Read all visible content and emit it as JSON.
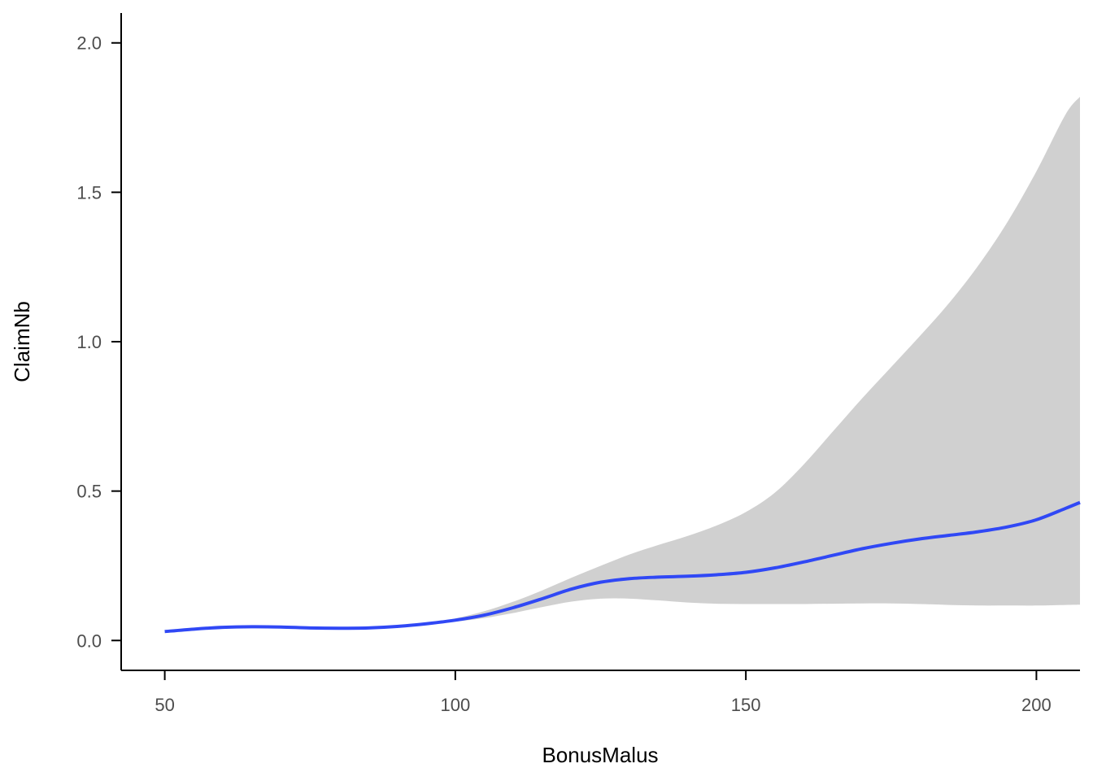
{
  "chart_data": {
    "type": "line",
    "xlabel": "BonusMalus",
    "ylabel": "ClaimNb",
    "xlim": [
      42.5,
      207.5
    ],
    "ylim": [
      -0.1,
      2.1
    ],
    "x_ticks": [
      50,
      100,
      150,
      200
    ],
    "y_ticks": [
      0.0,
      0.5,
      1.0,
      1.5,
      2.0
    ],
    "x_tick_labels": [
      "50",
      "100",
      "150",
      "200"
    ],
    "y_tick_labels": [
      "0.0",
      "0.5",
      "1.0",
      "1.5",
      "2.0"
    ],
    "grid": false,
    "series": [
      {
        "line_color": "#3048f5",
        "band_color": "#d0d0d0",
        "x": [
          50,
          55,
          60,
          65,
          70,
          75,
          80,
          85,
          90,
          95,
          100,
          105,
          110,
          115,
          120,
          125,
          130,
          135,
          140,
          145,
          150,
          155,
          160,
          165,
          170,
          175,
          180,
          185,
          190,
          195,
          200,
          205,
          207.5
        ],
        "y": [
          0.03,
          0.038,
          0.044,
          0.046,
          0.045,
          0.042,
          0.041,
          0.042,
          0.047,
          0.056,
          0.068,
          0.085,
          0.11,
          0.14,
          0.172,
          0.195,
          0.207,
          0.212,
          0.215,
          0.22,
          0.228,
          0.243,
          0.263,
          0.285,
          0.307,
          0.325,
          0.34,
          0.352,
          0.364,
          0.38,
          0.404,
          0.442,
          0.462
        ],
        "lower": [
          0.03,
          0.038,
          0.044,
          0.046,
          0.045,
          0.042,
          0.041,
          0.042,
          0.046,
          0.054,
          0.063,
          0.075,
          0.092,
          0.112,
          0.13,
          0.14,
          0.14,
          0.134,
          0.127,
          0.123,
          0.122,
          0.122,
          0.122,
          0.123,
          0.124,
          0.124,
          0.122,
          0.119,
          0.117,
          0.117,
          0.117,
          0.119,
          0.12
        ],
        "upper": [
          0.03,
          0.038,
          0.044,
          0.046,
          0.045,
          0.042,
          0.041,
          0.042,
          0.048,
          0.058,
          0.074,
          0.098,
          0.13,
          0.168,
          0.21,
          0.25,
          0.288,
          0.32,
          0.35,
          0.385,
          0.43,
          0.495,
          0.59,
          0.7,
          0.81,
          0.915,
          1.02,
          1.13,
          1.255,
          1.4,
          1.57,
          1.76,
          1.82
        ]
      }
    ]
  }
}
